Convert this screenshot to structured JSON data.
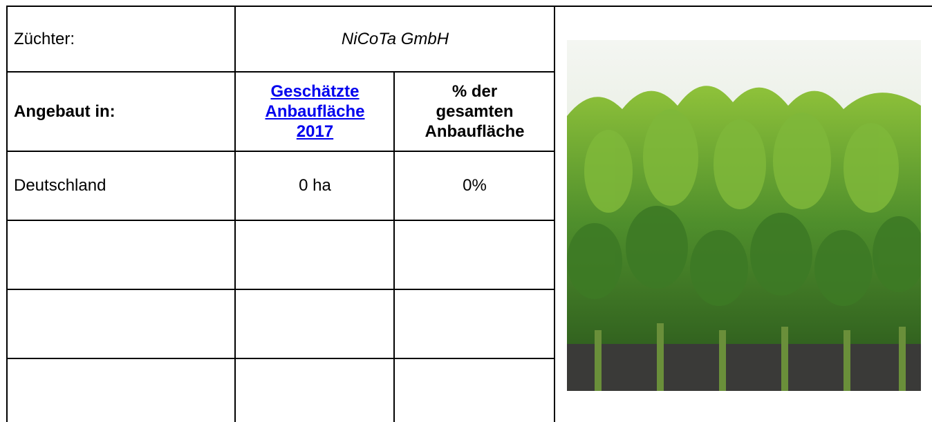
{
  "header": {
    "breeder_label": "Züchter:",
    "breeder": "NiCoTa GmbH"
  },
  "table": {
    "columns": [
      "Angebaut in:",
      "Geschätzte Anbaufläche 2017",
      "% der gesamten Anbaufläche"
    ],
    "rows": [
      [
        "Deutschland",
        "0 ha",
        "0%"
      ]
    ]
  }
}
